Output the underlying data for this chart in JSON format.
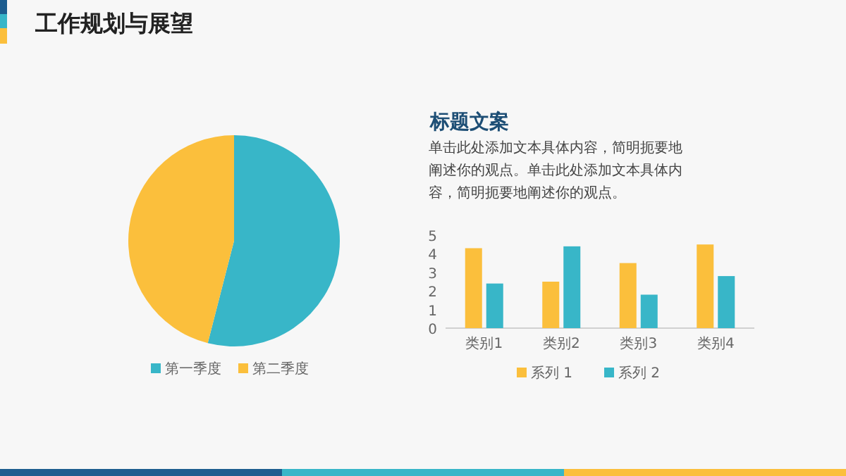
{
  "chart_data": [
    {
      "type": "pie",
      "title": "工作规划与展望",
      "categories": [
        "第一季度",
        "第二季度"
      ],
      "values": [
        54,
        46
      ],
      "colors": [
        "#38b6c8",
        "#fbbf3c"
      ],
      "legend": "bottom"
    },
    {
      "type": "other",
      "title": "标题文案",
      "annotations": [
        "单击此处添加文本具体内容，简明扼要地阐述你的观点。单击此处添加文本具体内容，简明扼要地阐述你的观点。"
      ]
    },
    {
      "type": "bar",
      "categories": [
        "类别1",
        "类别2",
        "类别3",
        "类别4"
      ],
      "series": [
        {
          "name": "系列 1",
          "color": "#fbbf3c",
          "values": [
            4.3,
            2.5,
            3.5,
            4.5
          ]
        },
        {
          "name": "系列 2",
          "color": "#38b6c8",
          "values": [
            2.4,
            4.4,
            1.8,
            2.8
          ]
        }
      ],
      "ylim": [
        0,
        5
      ],
      "yticks": [
        0,
        1,
        2,
        3,
        4,
        5
      ],
      "grid": false,
      "legend": "bottom"
    }
  ]
}
